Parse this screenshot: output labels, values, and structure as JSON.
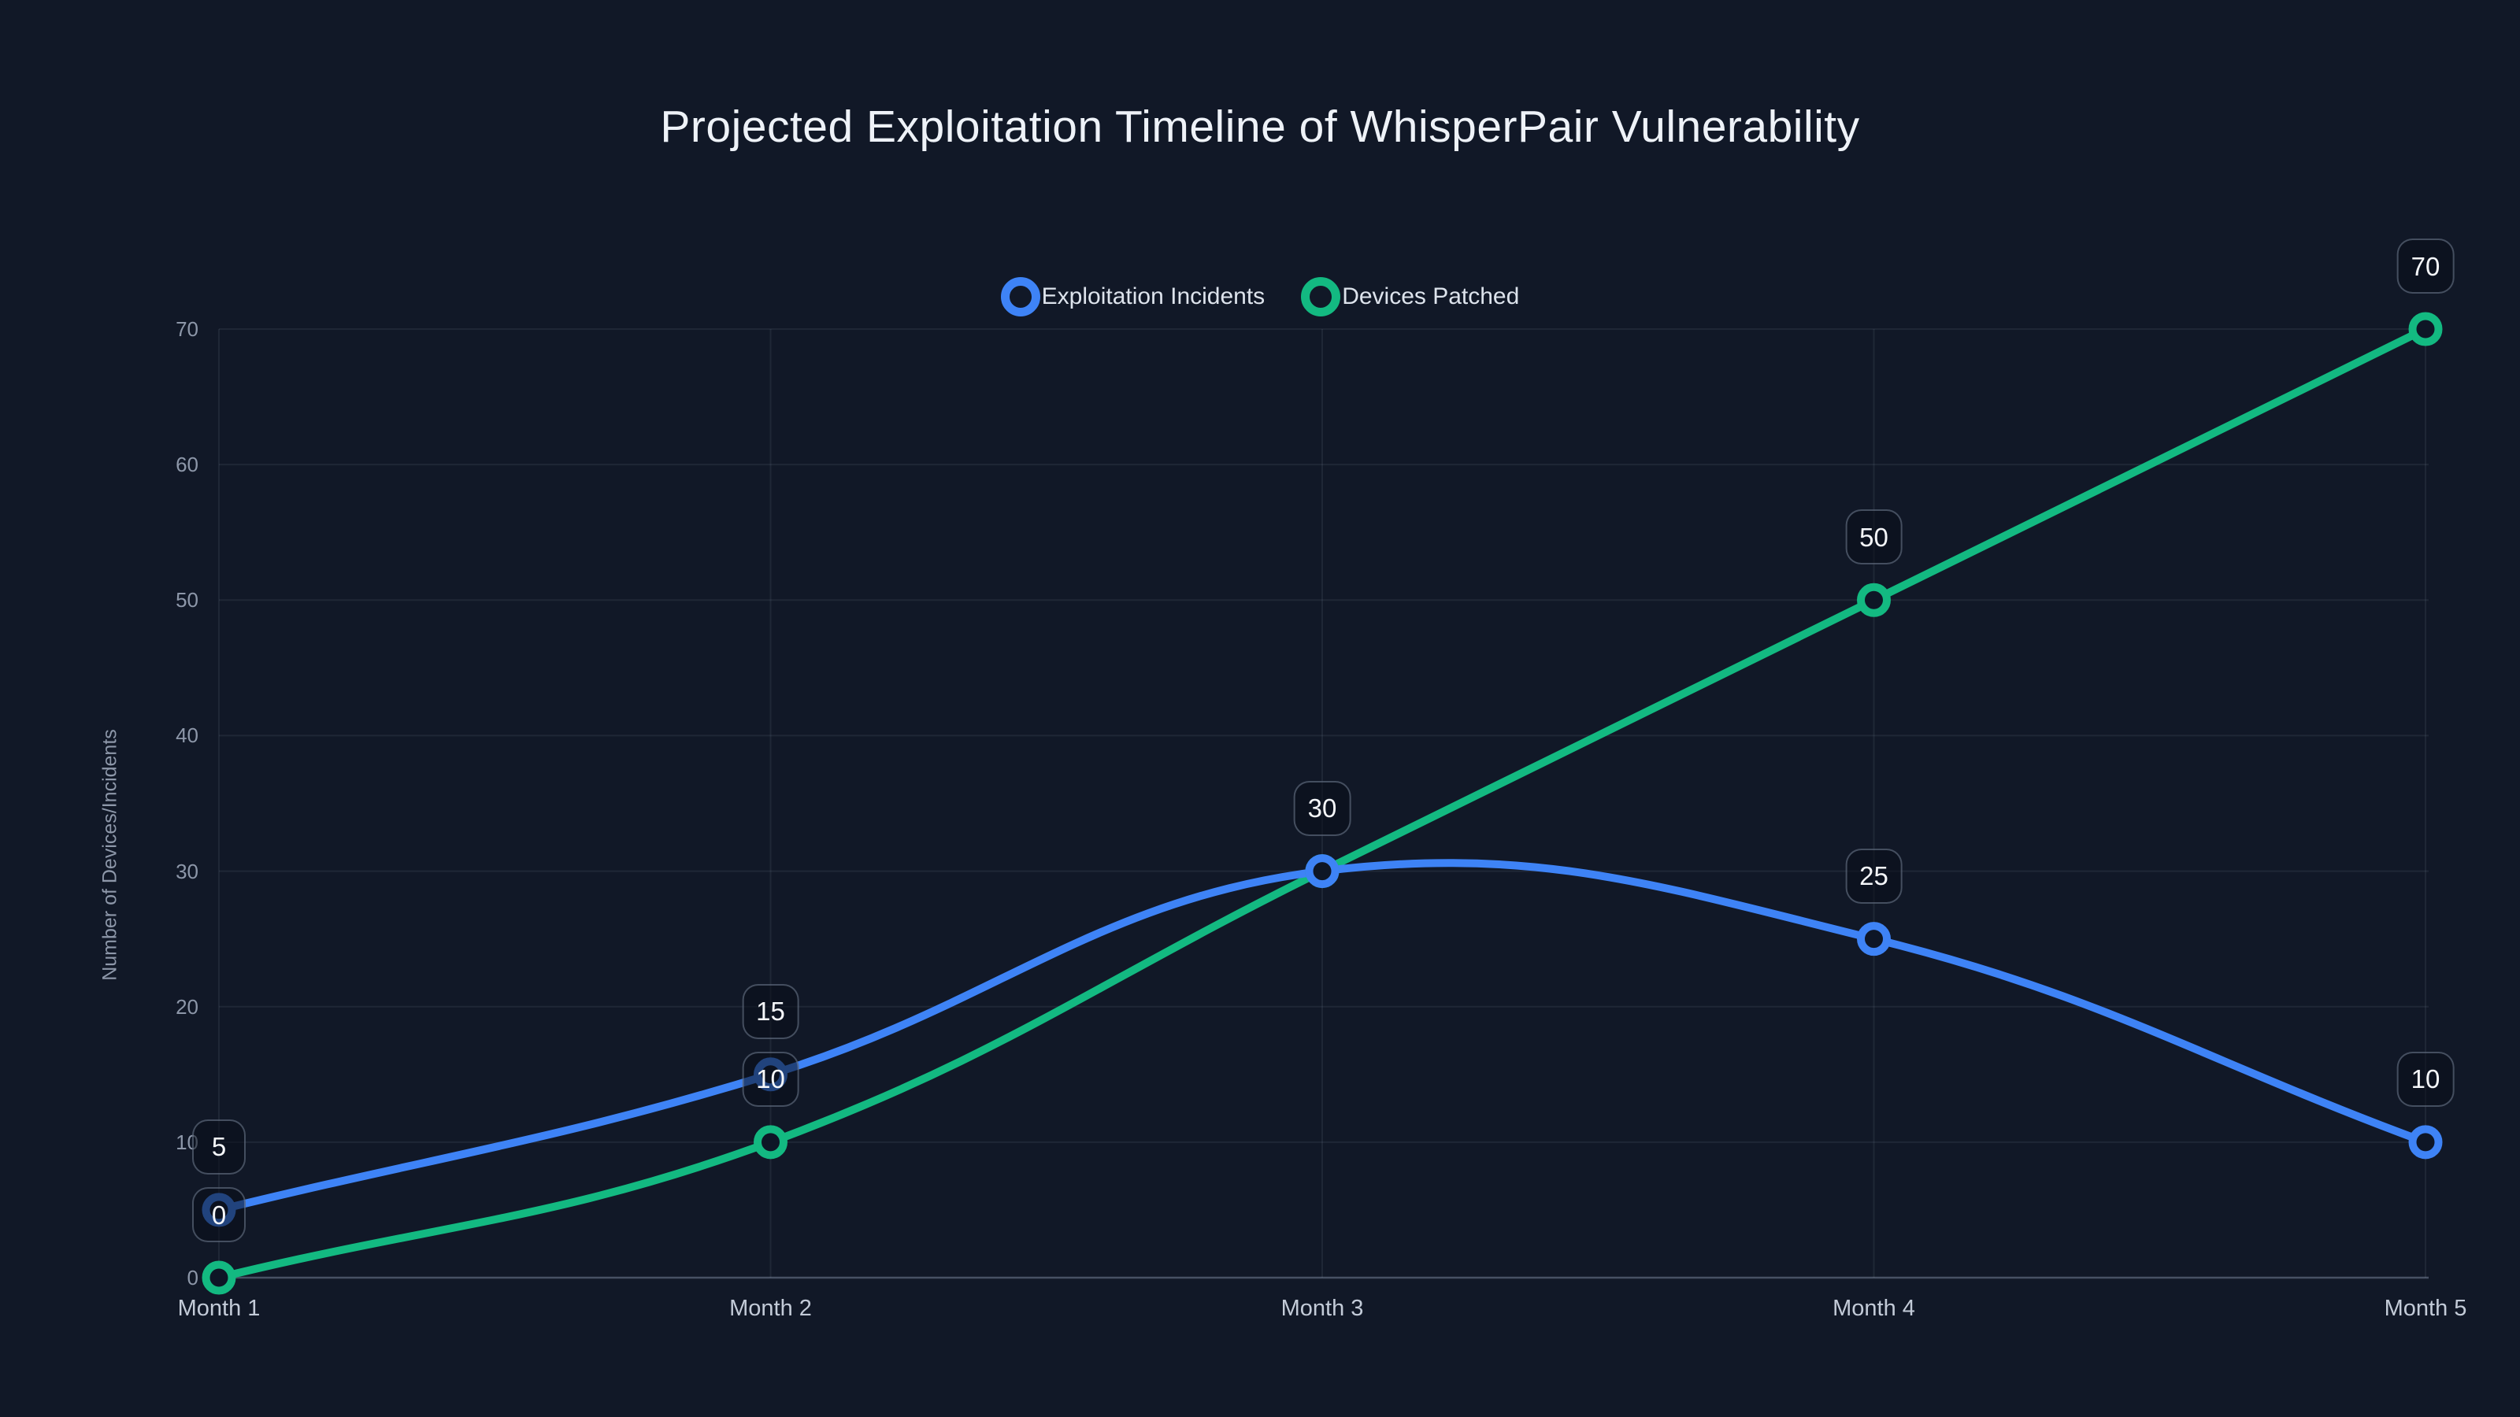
{
  "colors": {
    "background": "#111827",
    "blue_series": "#3e83f6",
    "green_series": "#13b981",
    "grid": "rgba(148,163,184,0.11)",
    "axis_line": "rgba(148,163,184,0.42)",
    "title_text": "#eef2f8",
    "tick_text": "#8d97a9",
    "category_text": "#c3cbd8",
    "point_fill": "#0e1626"
  },
  "chart_data": {
    "type": "line",
    "title": "Projected Exploitation Timeline of WhisperPair Vulnerability",
    "categories": [
      "Month 1",
      "Month 2",
      "Month 3",
      "Month 4",
      "Month 5"
    ],
    "series": [
      {
        "name": "Exploitation Incidents",
        "color": "#3e83f6",
        "values": [
          5,
          15,
          30,
          25,
          10
        ]
      },
      {
        "name": "Devices Patched",
        "color": "#13b981",
        "values": [
          0,
          10,
          30,
          50,
          70
        ]
      }
    ],
    "xlabel": "",
    "ylabel": "Number of Devices/Incidents",
    "ylim": [
      0,
      70
    ],
    "yticks": [
      0,
      10,
      20,
      30,
      40,
      50,
      60,
      70
    ],
    "grid": true,
    "legend_position": "top",
    "point_labels": true,
    "curve": "smooth"
  }
}
